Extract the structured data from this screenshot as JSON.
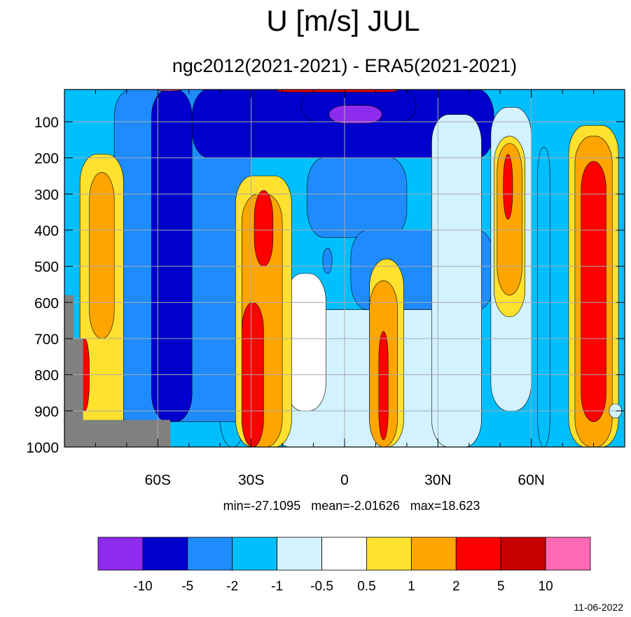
{
  "chart_data": {
    "type": "heatmap",
    "title": "U [m/s] JUL",
    "subtitle": "ngc2012(2021-2021) - ERA5(2021-2021)",
    "stats": "min=-27.1095   mean=-2.01626   max=18.623",
    "date": "11-06-2022",
    "x_ticks": [
      {
        "value": -60,
        "label": "60S"
      },
      {
        "value": -30,
        "label": "30S"
      },
      {
        "value": 0,
        "label": "0"
      },
      {
        "value": 30,
        "label": "30N"
      },
      {
        "value": 60,
        "label": "60N"
      }
    ],
    "x_minor_ticks": [
      -80,
      -70,
      -50,
      -40,
      -20,
      -10,
      10,
      20,
      40,
      50,
      70,
      80
    ],
    "xlim": [
      -90,
      90
    ],
    "ylim": [
      1000,
      10
    ],
    "y_ticks": [
      100,
      200,
      300,
      400,
      500,
      600,
      700,
      800,
      900,
      1000
    ],
    "y_tick_labels": [
      "100",
      "200",
      "300",
      "400",
      "500",
      "600",
      "700",
      "800",
      "900",
      "1000"
    ],
    "grid": true,
    "colorbar": {
      "levels": [
        "-10",
        "-5",
        "-2",
        "-1",
        "-0.5",
        "0.5",
        "1",
        "2",
        "5",
        "10"
      ],
      "colors": [
        "#8f2bef",
        "#0000cd",
        "#1e8cff",
        "#00bfff",
        "#d2f2ff",
        "#ffffff",
        "#ffe12e",
        "#ffa500",
        "#ff0000",
        "#c80000",
        "#ff69b4"
      ],
      "placement": "bottom"
    },
    "missing_color": "#808080",
    "field_regions": [
      {
        "level": 3,
        "lat_range": [
          -84,
          -57
        ],
        "p_range": [
          990,
          1000
        ]
      },
      {
        "level": 3,
        "lat_range": [
          -40,
          -32
        ],
        "p_range": [
          60,
          1000
        ]
      },
      {
        "level": 2,
        "lat_range": [
          -74,
          -30
        ],
        "p_range": [
          10,
          930
        ]
      },
      {
        "level": 1,
        "lat_range": [
          -62,
          -49
        ],
        "p_range": [
          10,
          930
        ]
      },
      {
        "level": 1,
        "lat_range": [
          -49,
          48
        ],
        "p_range": [
          10,
          200
        ]
      },
      {
        "level": 1,
        "lat_range": [
          -14,
          23
        ],
        "p_range": [
          10,
          100
        ]
      },
      {
        "level": 0,
        "lat_range": [
          -5,
          12
        ],
        "p_range": [
          55,
          105
        ]
      },
      {
        "level": 2,
        "lat_range": [
          -12,
          20
        ],
        "p_range": [
          200,
          420
        ]
      },
      {
        "level": 2,
        "lat_range": [
          2,
          48
        ],
        "p_range": [
          400,
          620
        ]
      },
      {
        "level": 3,
        "lat_range": [
          -10,
          5
        ],
        "p_range": [
          620,
          1000
        ]
      },
      {
        "level": 4,
        "lat_range": [
          -23,
          40
        ],
        "p_range": [
          620,
          1000
        ]
      },
      {
        "level": 2,
        "lat_range": [
          -7,
          -4
        ],
        "p_range": [
          450,
          520
        ]
      },
      {
        "level": 5,
        "lat_range": [
          -19,
          -6
        ],
        "p_range": [
          520,
          900
        ]
      },
      {
        "level": 4,
        "lat_range": [
          28,
          44
        ],
        "p_range": [
          80,
          1000
        ]
      },
      {
        "level": 6,
        "lat_range": [
          -85,
          -71
        ],
        "p_range": [
          190,
          1000
        ]
      },
      {
        "level": 7,
        "lat_range": [
          -82,
          -74
        ],
        "p_range": [
          240,
          700
        ]
      },
      {
        "level": 8,
        "lat_range": [
          -85,
          -82
        ],
        "p_range": [
          700,
          900
        ]
      },
      {
        "level": 6,
        "lat_range": [
          -35,
          -17
        ],
        "p_range": [
          250,
          1000
        ]
      },
      {
        "level": 7,
        "lat_range": [
          -33,
          -20
        ],
        "p_range": [
          300,
          1000
        ]
      },
      {
        "level": 8,
        "lat_range": [
          -29,
          -23
        ],
        "p_range": [
          290,
          500
        ]
      },
      {
        "level": 8,
        "lat_range": [
          -33,
          -26
        ],
        "p_range": [
          600,
          1000
        ]
      },
      {
        "level": 6,
        "lat_range": [
          8,
          19
        ],
        "p_range": [
          480,
          1000
        ]
      },
      {
        "level": 7,
        "lat_range": [
          8,
          17
        ],
        "p_range": [
          540,
          1000
        ]
      },
      {
        "level": 8,
        "lat_range": [
          11,
          14
        ],
        "p_range": [
          680,
          980
        ]
      },
      {
        "level": 4,
        "lat_range": [
          47,
          60
        ],
        "p_range": [
          60,
          900
        ]
      },
      {
        "level": 6,
        "lat_range": [
          48,
          58
        ],
        "p_range": [
          140,
          640
        ]
      },
      {
        "level": 7,
        "lat_range": [
          49,
          57
        ],
        "p_range": [
          160,
          580
        ]
      },
      {
        "level": 8,
        "lat_range": [
          51,
          54
        ],
        "p_range": [
          190,
          370
        ]
      },
      {
        "level": 3,
        "lat_range": [
          62,
          66
        ],
        "p_range": [
          170,
          1000
        ]
      },
      {
        "level": 6,
        "lat_range": [
          72,
          88
        ],
        "p_range": [
          110,
          1000
        ]
      },
      {
        "level": 7,
        "lat_range": [
          74,
          86
        ],
        "p_range": [
          140,
          1000
        ]
      },
      {
        "level": 8,
        "lat_range": [
          76,
          84
        ],
        "p_range": [
          210,
          930
        ]
      },
      {
        "level": 8,
        "lat_range": [
          -22,
          17
        ],
        "p_range": [
          10,
          18
        ]
      },
      {
        "level": 10,
        "lat_range": [
          -60,
          -53
        ],
        "p_range": [
          10,
          15
        ]
      },
      {
        "level": 10,
        "lat_range": [
          10,
          14
        ],
        "p_range": [
          10,
          12
        ]
      },
      {
        "level": 4,
        "lat_range": [
          85,
          89
        ],
        "p_range": [
          880,
          920
        ]
      }
    ]
  }
}
